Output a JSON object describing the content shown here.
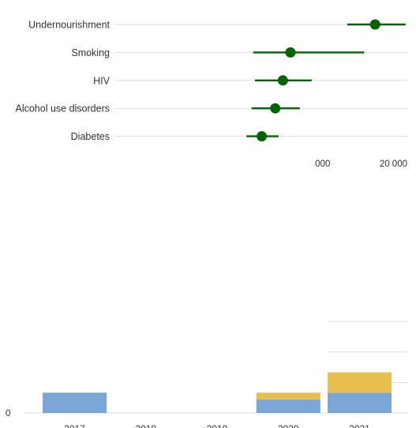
{
  "colors": {
    "marker": "#006400",
    "grid": "#dddddd",
    "bar_primary": "#7ba7d6",
    "bar_secondary": "#e8bf4d",
    "text": "#333333"
  },
  "chart_data": [
    {
      "type": "scatter",
      "variant": "dot-with-interval",
      "title": "",
      "xlabel": "",
      "ylabel": "",
      "categories": [
        "Undernourishment",
        "Smoking",
        "HIV",
        "Alcohol use disorders",
        "Diabetes"
      ],
      "visible_tick_labels": [
        "000",
        "20 000"
      ],
      "xlim": [
        0,
        20000
      ],
      "values": [
        16200,
        6200,
        5300,
        4400,
        2800
      ],
      "lower": [
        12900,
        1800,
        2000,
        1600,
        1000
      ],
      "upper": [
        19800,
        14900,
        8700,
        7300,
        4800
      ],
      "grid": true
    },
    {
      "type": "bar",
      "stacked": true,
      "title": "",
      "xlabel": "",
      "ylabel": "",
      "categories": [
        "2017",
        "2018",
        "2019",
        "2020",
        "2021"
      ],
      "y_tick_labels": [
        "0"
      ],
      "ylim": [
        0,
        1
      ],
      "series": [
        {
          "values": [
            0.18,
            0,
            0,
            0.12,
            0.18
          ]
        },
        {
          "values": [
            0,
            0,
            0,
            0.06,
            0.18
          ]
        }
      ],
      "grid": true
    }
  ]
}
